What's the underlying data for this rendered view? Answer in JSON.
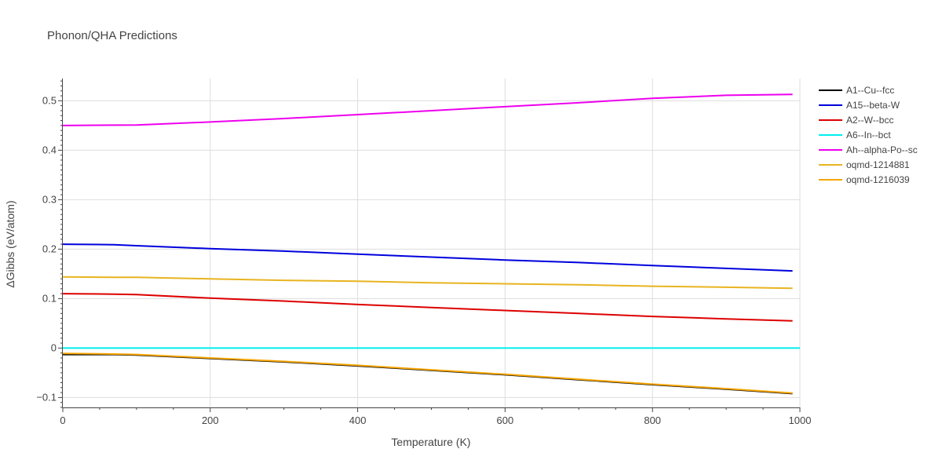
{
  "chart_data": {
    "type": "line",
    "title": "Phonon/QHA Predictions",
    "xlabel": "Temperature (K)",
    "ylabel": "ΔGibbs (eV/atom)",
    "xlim": [
      0,
      1000
    ],
    "ylim": [
      -0.12,
      0.545
    ],
    "xticks": [
      0,
      200,
      400,
      600,
      800,
      1000
    ],
    "xtick_labels": [
      "0",
      "200",
      "400",
      "600",
      "800",
      "1000"
    ],
    "yticks": [
      -0.1,
      0,
      0.1,
      0.2,
      0.3,
      0.4,
      0.5
    ],
    "ytick_labels": [
      "−0.1",
      "0",
      "0.1",
      "0.2",
      "0.3",
      "0.4",
      "0.5"
    ],
    "grid": true,
    "legend_position": "top-right",
    "series": [
      {
        "name": "A1--Cu--fcc",
        "color": "#000000",
        "x": [
          0,
          70,
          100,
          200,
          300,
          400,
          500,
          600,
          700,
          800,
          900,
          990
        ],
        "y": [
          -0.013,
          -0.013,
          -0.014,
          -0.021,
          -0.028,
          -0.036,
          -0.045,
          -0.054,
          -0.064,
          -0.074,
          -0.083,
          -0.092
        ]
      },
      {
        "name": "A15--beta-W",
        "color": "#0000dd",
        "x": [
          0,
          70,
          100,
          200,
          300,
          400,
          500,
          600,
          700,
          800,
          900,
          990
        ],
        "y": [
          0.21,
          0.209,
          0.207,
          0.201,
          0.196,
          0.19,
          0.184,
          0.178,
          0.173,
          0.167,
          0.161,
          0.156
        ]
      },
      {
        "name": "A2--W--bcc",
        "color": "#dd0000",
        "x": [
          0,
          70,
          100,
          200,
          300,
          400,
          500,
          600,
          700,
          800,
          900,
          990
        ],
        "y": [
          0.11,
          0.109,
          0.108,
          0.101,
          0.095,
          0.088,
          0.082,
          0.076,
          0.07,
          0.064,
          0.059,
          0.055
        ]
      },
      {
        "name": "A6--In--bct",
        "color": "#00eeee",
        "x": [
          0,
          1000
        ],
        "y": [
          0,
          0
        ]
      },
      {
        "name": "Ah--alpha-Po--sc",
        "color": "#ee00ee",
        "x": [
          0,
          100,
          200,
          300,
          400,
          500,
          600,
          700,
          800,
          900,
          990
        ],
        "y": [
          0.45,
          0.451,
          0.457,
          0.464,
          0.472,
          0.48,
          0.488,
          0.496,
          0.505,
          0.511,
          0.513
        ]
      },
      {
        "name": "oqmd-1214881",
        "color": "#e8b420",
        "x": [
          0,
          70,
          100,
          200,
          300,
          400,
          500,
          600,
          700,
          800,
          900,
          990
        ],
        "y": [
          0.144,
          0.143,
          0.143,
          0.14,
          0.137,
          0.135,
          0.132,
          0.13,
          0.128,
          0.125,
          0.123,
          0.121
        ]
      },
      {
        "name": "oqmd-1216039",
        "color": "#f5a500",
        "x": [
          0,
          70,
          100,
          200,
          300,
          400,
          500,
          600,
          700,
          800,
          900,
          990
        ],
        "y": [
          -0.011,
          -0.012,
          -0.013,
          -0.02,
          -0.027,
          -0.035,
          -0.044,
          -0.053,
          -0.063,
          -0.073,
          -0.082,
          -0.091
        ]
      }
    ]
  }
}
